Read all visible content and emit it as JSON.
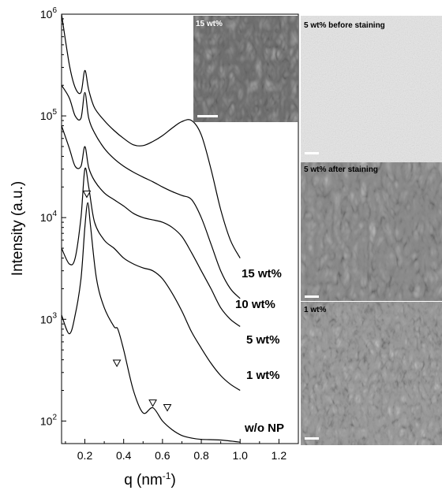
{
  "chart_data": {
    "type": "line",
    "xlabel": "q (nm⁻¹)",
    "ylabel": "Intensity (a.u.)",
    "xlim": [
      0.08,
      1.3
    ],
    "ylim": [
      60,
      1000000
    ],
    "y_scale": "log",
    "x_ticks": [
      "0.2",
      "0.4",
      "0.6",
      "0.8",
      "1.0",
      "1.2"
    ],
    "y_ticks": [
      {
        "base": "10",
        "exp": "2"
      },
      {
        "base": "10",
        "exp": "3"
      },
      {
        "base": "10",
        "exp": "4"
      },
      {
        "base": "10",
        "exp": "5"
      },
      {
        "base": "10",
        "exp": "6"
      }
    ],
    "series": [
      {
        "name": "15 wt%",
        "x": [
          0.08,
          0.12,
          0.15,
          0.18,
          0.2,
          0.22,
          0.25,
          0.3,
          0.35,
          0.4,
          0.45,
          0.5,
          0.55,
          0.6,
          0.65,
          0.7,
          0.75,
          0.8,
          0.85,
          0.9,
          0.95,
          1.0
        ],
        "y": [
          1000000,
          320000,
          190000,
          170000,
          280000,
          180000,
          120000,
          90000,
          72000,
          60000,
          52000,
          51000,
          56000,
          64000,
          76000,
          88000,
          90000,
          65000,
          30000,
          12000,
          6000,
          4000
        ]
      },
      {
        "name": "10 wt%",
        "x": [
          0.08,
          0.12,
          0.15,
          0.18,
          0.2,
          0.22,
          0.25,
          0.3,
          0.35,
          0.4,
          0.45,
          0.5,
          0.55,
          0.6,
          0.65,
          0.7,
          0.75,
          0.8,
          0.85,
          0.9,
          0.95,
          1.0
        ],
        "y": [
          200000,
          150000,
          100000,
          95000,
          170000,
          95000,
          68000,
          48000,
          38000,
          32000,
          28000,
          25000,
          22500,
          20000,
          18000,
          16500,
          15000,
          10000,
          5500,
          3000,
          2000,
          1600
        ]
      },
      {
        "name": "5 wt%",
        "x": [
          0.08,
          0.12,
          0.15,
          0.18,
          0.2,
          0.22,
          0.25,
          0.3,
          0.35,
          0.4,
          0.45,
          0.5,
          0.55,
          0.6,
          0.65,
          0.7,
          0.75,
          0.8,
          0.85,
          0.9,
          0.95,
          1.0
        ],
        "y": [
          80000,
          48000,
          32000,
          32000,
          50000,
          31000,
          23000,
          17500,
          15000,
          13000,
          11000,
          10000,
          9500,
          9000,
          8000,
          6500,
          4500,
          3000,
          2000,
          1300,
          1000,
          850
        ]
      },
      {
        "name": "1 wt%",
        "x": [
          0.08,
          0.12,
          0.15,
          0.18,
          0.2,
          0.22,
          0.25,
          0.3,
          0.35,
          0.4,
          0.45,
          0.5,
          0.55,
          0.6,
          0.65,
          0.7,
          0.75,
          0.8,
          0.85,
          0.9,
          0.95,
          1.0
        ],
        "y": [
          5000,
          3500,
          4000,
          10000,
          30000,
          20000,
          9000,
          6000,
          5000,
          4000,
          3500,
          3200,
          3000,
          2500,
          1800,
          1200,
          750,
          520,
          370,
          280,
          230,
          200
        ]
      },
      {
        "name": "w/o NP",
        "x": [
          0.08,
          0.12,
          0.15,
          0.18,
          0.2,
          0.215,
          0.23,
          0.26,
          0.3,
          0.35,
          0.37,
          0.4,
          0.45,
          0.5,
          0.55,
          0.6,
          0.65,
          0.7,
          0.75,
          0.8,
          0.9,
          1.0
        ],
        "y": [
          1100,
          720,
          1100,
          2500,
          8000,
          14000,
          8000,
          2500,
          1300,
          850,
          800,
          500,
          200,
          120,
          135,
          100,
          82,
          72,
          68,
          66,
          65,
          62
        ]
      }
    ],
    "peak_markers": [
      {
        "x": 0.21,
        "y": 17000
      },
      {
        "x": 0.365,
        "y": 370
      },
      {
        "x": 0.55,
        "y": 150
      },
      {
        "x": 0.625,
        "y": 135
      }
    ]
  },
  "curve_labels": {
    "s15": "15 wt%",
    "s10": "10 wt%",
    "s5": "5 wt%",
    "s1": "1 wt%",
    "s0": "w/o NP"
  },
  "panels": {
    "inset": "15 wt%",
    "top": "5 wt% before staining",
    "mid": "5 wt% after staining",
    "bottom": "1 wt%"
  }
}
